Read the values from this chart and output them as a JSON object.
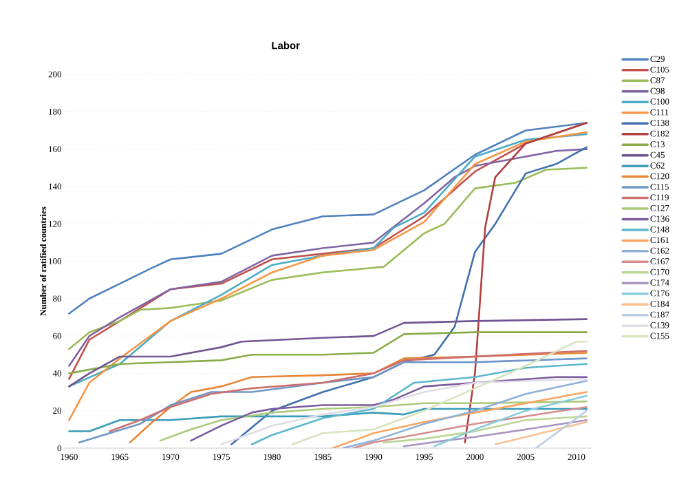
{
  "chart_data": {
    "type": "line",
    "title": "Labor",
    "ylabel": "Number of ratified countries",
    "xlim": [
      1959.5,
      2011.5
    ],
    "ylim": [
      0,
      200
    ],
    "xticks": [
      1960,
      1965,
      1970,
      1975,
      1980,
      1985,
      1990,
      1995,
      2000,
      2005,
      2010
    ],
    "yticks": [
      0,
      20,
      40,
      60,
      80,
      100,
      120,
      140,
      160,
      180,
      200
    ],
    "grid": "y",
    "legend": "right",
    "marker": "none",
    "line_style": "solid",
    "series": [
      {
        "name": "C29",
        "color": "#4f81bd",
        "x": [
          1960,
          1962,
          1965,
          1968,
          1970,
          1975,
          1980,
          1985,
          1990,
          1995,
          2000,
          2005,
          2011
        ],
        "values": [
          72,
          80,
          88,
          96,
          101,
          104,
          117,
          124,
          125,
          138,
          157,
          170,
          174
        ]
      },
      {
        "name": "C105",
        "color": "#c0504d",
        "x": [
          1960,
          1962,
          1965,
          1970,
          1975,
          1980,
          1985,
          1990,
          1995,
          2000,
          2005,
          2011
        ],
        "values": [
          37,
          58,
          68,
          85,
          88,
          101,
          104,
          107,
          124,
          148,
          163,
          174
        ]
      },
      {
        "name": "C87",
        "color": "#9bbb59",
        "x": [
          1960,
          1962,
          1965,
          1967,
          1970,
          1975,
          1980,
          1985,
          1991,
          1995,
          1997,
          2000,
          2004,
          2007,
          2011
        ],
        "values": [
          53,
          62,
          68,
          74,
          75,
          79,
          90,
          94,
          97,
          115,
          120,
          139,
          142,
          149,
          150
        ]
      },
      {
        "name": "C98",
        "color": "#8064a2",
        "x": [
          1960,
          1962,
          1965,
          1970,
          1975,
          1980,
          1985,
          1990,
          1995,
          1998,
          2000,
          2005,
          2008,
          2011
        ],
        "values": [
          44,
          60,
          70,
          85,
          89,
          103,
          107,
          110,
          131,
          145,
          151,
          156,
          159,
          160
        ]
      },
      {
        "name": "C100",
        "color": "#4bacc6",
        "x": [
          1960,
          1965,
          1970,
          1975,
          1980,
          1985,
          1990,
          1992,
          1995,
          2000,
          2005,
          2011
        ],
        "values": [
          33,
          45,
          68,
          82,
          98,
          103,
          107,
          118,
          126,
          156,
          165,
          168
        ]
      },
      {
        "name": "C111",
        "color": "#f79646",
        "x": [
          1960,
          1962,
          1965,
          1970,
          1975,
          1980,
          1985,
          1990,
          1995,
          2000,
          2005,
          2011
        ],
        "values": [
          15,
          35,
          48,
          68,
          80,
          94,
          103,
          106,
          121,
          152,
          164,
          169
        ]
      },
      {
        "name": "C138",
        "color": "#3f6fae",
        "x": [
          1976,
          1980,
          1985,
          1990,
          1993,
          1996,
          1998,
          2000,
          2002,
          2005,
          2008,
          2011
        ],
        "values": [
          2,
          20,
          30,
          38,
          46,
          50,
          65,
          105,
          120,
          147,
          152,
          161
        ]
      },
      {
        "name": "C182",
        "color": "#b0403d",
        "x": [
          1999,
          2000,
          2001,
          2002,
          2005,
          2011
        ],
        "values": [
          3,
          40,
          118,
          145,
          163,
          174
        ]
      },
      {
        "name": "C13",
        "color": "#8aab48",
        "x": [
          1960,
          1965,
          1970,
          1975,
          1978,
          1985,
          1990,
          1993,
          2000,
          2011
        ],
        "values": [
          40,
          45,
          46,
          47,
          50,
          50,
          51,
          61,
          62,
          62
        ]
      },
      {
        "name": "C45",
        "color": "#705492",
        "x": [
          1960,
          1962,
          1965,
          1970,
          1975,
          1977,
          1985,
          1990,
          1993,
          2000,
          2011
        ],
        "values": [
          33,
          40,
          49,
          49,
          54,
          57,
          59,
          60,
          67,
          68,
          69
        ]
      },
      {
        "name": "C62",
        "color": "#3b9cb6",
        "x": [
          1960,
          1962,
          1965,
          1970,
          1975,
          1980,
          1985,
          1990,
          1993,
          1995,
          2000,
          2011
        ],
        "values": [
          9,
          9,
          15,
          15,
          17,
          17,
          17,
          19,
          18,
          21,
          21,
          21
        ]
      },
      {
        "name": "C120",
        "color": "#e78636",
        "x": [
          1966,
          1968,
          1970,
          1972,
          1975,
          1978,
          1985,
          1990,
          1993,
          2000,
          2011
        ],
        "values": [
          3,
          13,
          22,
          30,
          33,
          38,
          39,
          40,
          48,
          49,
          51
        ]
      },
      {
        "name": "C115",
        "color": "#6f96c8",
        "x": [
          1961,
          1964,
          1967,
          1970,
          1974,
          1978,
          1985,
          1990,
          1993,
          2000,
          2011
        ],
        "values": [
          3,
          8,
          13,
          23,
          30,
          30,
          35,
          38,
          46,
          46,
          48
        ]
      },
      {
        "name": "C119",
        "color": "#cd6f6c",
        "x": [
          1964,
          1967,
          1970,
          1974,
          1978,
          1985,
          1990,
          1993,
          2000,
          2007,
          2011
        ],
        "values": [
          9,
          15,
          22,
          29,
          32,
          35,
          40,
          47,
          49,
          51,
          52
        ]
      },
      {
        "name": "C127",
        "color": "#acc97a",
        "x": [
          1969,
          1972,
          1975,
          1980,
          1985,
          1990,
          1995,
          2000,
          2011
        ],
        "values": [
          4,
          10,
          15,
          19,
          21,
          22,
          24,
          24,
          25
        ]
      },
      {
        "name": "C136",
        "color": "#7a5a9e",
        "x": [
          1972,
          1975,
          1978,
          1980,
          1985,
          1990,
          1992,
          1995,
          2000,
          2008,
          2011
        ],
        "values": [
          4,
          12,
          19,
          21,
          23,
          23,
          26,
          33,
          35,
          38,
          38
        ]
      },
      {
        "name": "C148",
        "color": "#5bb6cd",
        "x": [
          1978,
          1980,
          1985,
          1990,
          1994,
          2000,
          2005,
          2011
        ],
        "values": [
          2,
          7,
          16,
          21,
          35,
          38,
          43,
          45
        ]
      },
      {
        "name": "C161",
        "color": "#f8a560",
        "x": [
          1986,
          1990,
          1995,
          2000,
          2005,
          2011
        ],
        "values": [
          0,
          8,
          14,
          19,
          24,
          30
        ]
      },
      {
        "name": "C162",
        "color": "#8eb0d8",
        "x": [
          1987,
          1990,
          1995,
          2000,
          2005,
          2011
        ],
        "values": [
          0,
          4,
          13,
          20,
          29,
          36
        ]
      },
      {
        "name": "C167",
        "color": "#d48d8b",
        "x": [
          1988,
          1990,
          1995,
          2000,
          2005,
          2011
        ],
        "values": [
          0,
          3,
          8,
          13,
          17,
          22
        ]
      },
      {
        "name": "C170",
        "color": "#bcd596",
        "x": [
          1991,
          1995,
          2000,
          2005,
          2011
        ],
        "values": [
          3,
          5,
          9,
          15,
          17
        ]
      },
      {
        "name": "C174",
        "color": "#a795c0",
        "x": [
          1993,
          1997,
          2000,
          2005,
          2011
        ],
        "values": [
          1,
          4,
          6,
          10,
          15
        ]
      },
      {
        "name": "C176",
        "color": "#88cbdc",
        "x": [
          1996,
          2000,
          2005,
          2011
        ],
        "values": [
          1,
          10,
          20,
          28
        ]
      },
      {
        "name": "C184",
        "color": "#fac091",
        "x": [
          2002,
          2005,
          2011
        ],
        "values": [
          2,
          6,
          14
        ]
      },
      {
        "name": "C187",
        "color": "#b9cde5",
        "x": [
          2006,
          2008,
          2011
        ],
        "values": [
          0,
          8,
          20
        ]
      },
      {
        "name": "C139",
        "color": "#e0dde6",
        "x": [
          1975,
          1980,
          1985,
          1990,
          1995,
          2000,
          2011
        ],
        "values": [
          2,
          12,
          18,
          22,
          30,
          35,
          37
        ]
      },
      {
        "name": "C155",
        "color": "#d7e4bd",
        "x": [
          1982,
          1985,
          1990,
          1995,
          2000,
          2005,
          2010,
          2011
        ],
        "values": [
          2,
          8,
          10,
          20,
          32,
          44,
          57,
          57
        ]
      }
    ]
  }
}
